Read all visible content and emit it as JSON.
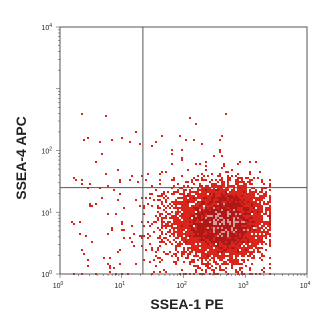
{
  "chart_data": {
    "type": "scatter",
    "plot_style": "flow cytometry dot plot (density colored)",
    "xlabel": "SSEA-1 PE",
    "ylabel": "SSEA-4 APC",
    "xscale": "log",
    "yscale": "log",
    "xlim": [
      1,
      10000
    ],
    "ylim": [
      1,
      10000
    ],
    "x_ticks": [
      {
        "base": "10",
        "exp": "0",
        "value": 1
      },
      {
        "base": "10",
        "exp": "1",
        "value": 10
      },
      {
        "base": "10",
        "exp": "2",
        "value": 100
      },
      {
        "base": "10",
        "exp": "3",
        "value": 1000
      },
      {
        "base": "10",
        "exp": "4",
        "value": 10000
      }
    ],
    "y_ticks": [
      {
        "base": "10",
        "exp": "0",
        "value": 1
      },
      {
        "base": "10",
        "exp": "1",
        "value": 10
      },
      {
        "base": "10",
        "exp": "2",
        "value": 100
      },
      {
        "base": "10",
        "exp": "4",
        "value": 10000
      }
    ],
    "quadrant_gates": {
      "x": 22,
      "y": 25
    },
    "population": {
      "center": {
        "x": 450,
        "y": 7
      },
      "spread_log10": {
        "x": 0.32,
        "y": 0.28
      },
      "outliers_x_range": [
        1.5,
        500
      ],
      "outliers_y_range": [
        1,
        400
      ]
    },
    "grid": false,
    "legend": "none",
    "colors": {
      "dots_low_density": "#d8261c",
      "dots_mid_density": "#b01818",
      "core_high_density": "#e7d5d5",
      "gate_lines": "#555555",
      "axis": "#555555"
    }
  }
}
